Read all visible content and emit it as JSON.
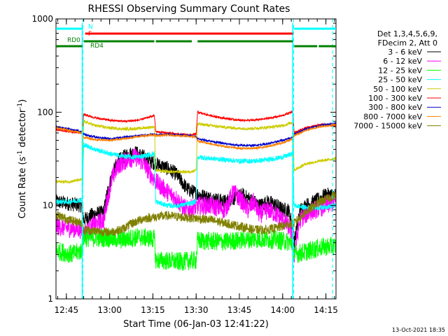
{
  "chart_data": {
    "type": "line",
    "title": "RHESSI Observing Summary Count Rates",
    "xlabel": "Start Time (06-Jan-03 12:41:22)",
    "ylabel_main": "Count Rate (s",
    "ylabel_sup1": "-1",
    "ylabel_mid": " detector",
    "ylabel_sup2": "-1",
    "ylabel_end": ")",
    "yscale": "log",
    "ylim": [
      1,
      1000
    ],
    "xlim_minutes": [
      41.4,
      138.5
    ],
    "x_ticks": [
      {
        "m": 45,
        "label": "12:45"
      },
      {
        "m": 60,
        "label": "13:00"
      },
      {
        "m": 75,
        "label": "13:15"
      },
      {
        "m": 90,
        "label": "13:30"
      },
      {
        "m": 105,
        "label": "13:45"
      },
      {
        "m": 120,
        "label": "14:00"
      },
      {
        "m": 135,
        "label": "14:15"
      }
    ],
    "y_ticks": [
      {
        "v": 1,
        "label": "1"
      },
      {
        "v": 10,
        "label": "10"
      },
      {
        "v": 100,
        "label": "100"
      },
      {
        "v": 1000,
        "label": "1000"
      }
    ],
    "legend": {
      "header1": "Det 1,3,4,5,6,9,",
      "header2": "FDecim 2, Att 0",
      "placement": "right"
    },
    "series": [
      {
        "name": "3 - 6 keV",
        "color": "#000000",
        "noise": 0.35,
        "points": [
          [
            41.4,
            11
          ],
          [
            50.5,
            10
          ],
          [
            51,
            7
          ],
          [
            54,
            8
          ],
          [
            58,
            8.5
          ],
          [
            59,
            13
          ],
          [
            61,
            22
          ],
          [
            63,
            30
          ],
          [
            66,
            35
          ],
          [
            69,
            37
          ],
          [
            72,
            33
          ],
          [
            74,
            30
          ],
          [
            76,
            28
          ],
          [
            80,
            25
          ],
          [
            83,
            22
          ],
          [
            85,
            18
          ],
          [
            87,
            15
          ],
          [
            89,
            14
          ],
          [
            91,
            13
          ],
          [
            95,
            12
          ],
          [
            100,
            11
          ],
          [
            103,
            12
          ],
          [
            106,
            13
          ],
          [
            108,
            12
          ],
          [
            110,
            11
          ],
          [
            112,
            10
          ],
          [
            115,
            11
          ],
          [
            118,
            10
          ],
          [
            120,
            9
          ],
          [
            122,
            9
          ],
          [
            123.5,
            6
          ],
          [
            124,
            4
          ],
          [
            126,
            9
          ],
          [
            128,
            10
          ],
          [
            131,
            11
          ],
          [
            135,
            13
          ],
          [
            138.5,
            13
          ]
        ]
      },
      {
        "name": "6 - 12 keV",
        "color": "#ff00ff",
        "noise": 0.45,
        "points": [
          [
            41.4,
            6
          ],
          [
            50.5,
            5.5
          ],
          [
            51,
            5
          ],
          [
            54,
            6
          ],
          [
            58,
            7
          ],
          [
            59,
            11
          ],
          [
            61,
            20
          ],
          [
            63,
            27
          ],
          [
            66,
            31
          ],
          [
            69,
            33
          ],
          [
            72,
            28
          ],
          [
            74,
            22
          ],
          [
            76,
            18
          ],
          [
            80,
            14
          ],
          [
            83,
            12
          ],
          [
            85,
            10
          ],
          [
            87,
            9
          ],
          [
            89,
            9.5
          ],
          [
            91,
            10
          ],
          [
            95,
            10
          ],
          [
            100,
            9
          ],
          [
            103,
            14
          ],
          [
            106,
            11
          ],
          [
            108,
            9
          ],
          [
            110,
            11
          ],
          [
            112,
            8
          ],
          [
            115,
            9
          ],
          [
            118,
            8
          ],
          [
            120,
            7
          ],
          [
            122,
            6
          ],
          [
            123.5,
            5
          ],
          [
            124,
            3
          ],
          [
            126,
            7
          ],
          [
            128,
            8
          ],
          [
            131,
            9
          ],
          [
            135,
            10
          ],
          [
            138.5,
            11
          ]
        ]
      },
      {
        "name": "12 - 25 keV",
        "color": "#00ff00",
        "noise": 0.45,
        "points": [
          [
            41.4,
            3.3
          ],
          [
            47,
            3.0
          ],
          [
            50.5,
            3.3
          ],
          [
            51,
            4.5
          ],
          [
            58,
            4.5
          ],
          [
            64,
            4.3
          ],
          [
            70,
            4.6
          ],
          [
            75.5,
            4.4
          ],
          [
            76,
            2.6
          ],
          [
            84,
            2.5
          ],
          [
            90,
            2.6
          ],
          [
            90.5,
            4.2
          ],
          [
            100,
            4.1
          ],
          [
            110,
            4.4
          ],
          [
            118,
            4.3
          ],
          [
            123.5,
            4.0
          ],
          [
            124,
            3.0
          ],
          [
            128,
            3.2
          ],
          [
            134,
            3.6
          ],
          [
            138.5,
            3.7
          ]
        ]
      },
      {
        "name": "25 - 50 keV",
        "color": "#00ffff",
        "noise": 0.12,
        "points": [
          [
            41.4,
            11
          ],
          [
            46,
            11
          ],
          [
            50.5,
            11.5
          ],
          [
            51,
            45
          ],
          [
            55,
            40
          ],
          [
            60,
            36
          ],
          [
            64,
            34
          ],
          [
            68,
            33
          ],
          [
            72,
            34
          ],
          [
            75.5,
            36
          ],
          [
            76,
            11
          ],
          [
            80,
            10
          ],
          [
            84,
            10
          ],
          [
            88,
            10.5
          ],
          [
            90,
            11
          ],
          [
            90.5,
            33
          ],
          [
            95,
            32
          ],
          [
            100,
            31
          ],
          [
            105,
            30
          ],
          [
            110,
            30
          ],
          [
            115,
            31
          ],
          [
            120,
            33
          ],
          [
            123.5,
            36
          ],
          [
            124,
            10
          ],
          [
            128,
            9.5
          ],
          [
            133,
            9.5
          ],
          [
            138.5,
            10
          ]
        ]
      },
      {
        "name": "50 - 100 keV",
        "color": "#cccc00",
        "noise": 0.07,
        "points": [
          [
            41.4,
            18
          ],
          [
            46,
            18
          ],
          [
            50.5,
            19
          ],
          [
            51,
            80
          ],
          [
            55,
            72
          ],
          [
            60,
            68
          ],
          [
            65,
            66
          ],
          [
            70,
            67
          ],
          [
            75.5,
            70
          ],
          [
            76,
            24
          ],
          [
            80,
            23
          ],
          [
            84,
            23
          ],
          [
            88,
            23
          ],
          [
            90,
            24
          ],
          [
            90.5,
            75
          ],
          [
            95,
            72
          ],
          [
            100,
            69
          ],
          [
            105,
            67
          ],
          [
            110,
            67
          ],
          [
            115,
            69
          ],
          [
            120,
            72
          ],
          [
            123.5,
            78
          ],
          [
            124,
            24
          ],
          [
            128,
            28
          ],
          [
            133,
            30
          ],
          [
            138.5,
            32
          ]
        ]
      },
      {
        "name": "100 - 300 keV",
        "color": "#ff0000",
        "noise": 0.05,
        "points": [
          [
            41.4,
            65
          ],
          [
            46,
            62
          ],
          [
            50.5,
            60
          ],
          [
            51,
            95
          ],
          [
            55,
            87
          ],
          [
            60,
            82
          ],
          [
            65,
            80
          ],
          [
            70,
            82
          ],
          [
            75.5,
            92
          ],
          [
            76,
            62
          ],
          [
            80,
            60
          ],
          [
            84,
            58
          ],
          [
            88,
            57
          ],
          [
            90,
            58
          ],
          [
            90.5,
            100
          ],
          [
            95,
            92
          ],
          [
            100,
            86
          ],
          [
            105,
            82
          ],
          [
            110,
            82
          ],
          [
            115,
            86
          ],
          [
            120,
            92
          ],
          [
            123.5,
            102
          ],
          [
            124,
            60
          ],
          [
            128,
            68
          ],
          [
            133,
            74
          ],
          [
            138.5,
            72
          ]
        ]
      },
      {
        "name": "300 - 800 keV",
        "color": "#0000cc",
        "noise": 0.05,
        "points": [
          [
            41.4,
            70
          ],
          [
            46,
            66
          ],
          [
            50.5,
            62
          ],
          [
            51,
            58
          ],
          [
            55,
            54
          ],
          [
            60,
            52
          ],
          [
            65,
            54
          ],
          [
            70,
            56
          ],
          [
            75.5,
            58
          ],
          [
            76,
            57
          ],
          [
            80,
            58
          ],
          [
            84,
            57
          ],
          [
            88,
            56
          ],
          [
            90,
            55
          ],
          [
            90.5,
            52
          ],
          [
            95,
            49
          ],
          [
            100,
            46
          ],
          [
            105,
            44
          ],
          [
            110,
            44
          ],
          [
            115,
            46
          ],
          [
            120,
            50
          ],
          [
            123.5,
            54
          ],
          [
            124,
            58
          ],
          [
            128,
            66
          ],
          [
            133,
            72
          ],
          [
            138.5,
            76
          ]
        ]
      },
      {
        "name": "800 - 7000 keV",
        "color": "#ff8000",
        "noise": 0.05,
        "points": [
          [
            41.4,
            68
          ],
          [
            46,
            64
          ],
          [
            50.5,
            60
          ],
          [
            51,
            54
          ],
          [
            55,
            51
          ],
          [
            60,
            50
          ],
          [
            65,
            52
          ],
          [
            70,
            55
          ],
          [
            75.5,
            57
          ],
          [
            76,
            56
          ],
          [
            80,
            57
          ],
          [
            84,
            56
          ],
          [
            88,
            55
          ],
          [
            90,
            54
          ],
          [
            90.5,
            49
          ],
          [
            95,
            46
          ],
          [
            100,
            43
          ],
          [
            105,
            41
          ],
          [
            110,
            41
          ],
          [
            115,
            43
          ],
          [
            120,
            47
          ],
          [
            123.5,
            52
          ],
          [
            124,
            56
          ],
          [
            128,
            64
          ],
          [
            133,
            70
          ],
          [
            138.5,
            74
          ]
        ]
      },
      {
        "name": "7000 - 15000 keV",
        "color": "#808000",
        "noise": 0.22,
        "points": [
          [
            41.4,
            8
          ],
          [
            46,
            7
          ],
          [
            50.5,
            6.5
          ],
          [
            51,
            5.5
          ],
          [
            56,
            5.3
          ],
          [
            60,
            5.2
          ],
          [
            64,
            5.5
          ],
          [
            68,
            6.5
          ],
          [
            72,
            7.3
          ],
          [
            75.5,
            7.5
          ],
          [
            80,
            7.8
          ],
          [
            85,
            7.5
          ],
          [
            90,
            7.3
          ],
          [
            95,
            7
          ],
          [
            100,
            6.5
          ],
          [
            105,
            6
          ],
          [
            110,
            5.5
          ],
          [
            115,
            5.5
          ],
          [
            120,
            6
          ],
          [
            123.5,
            6.5
          ],
          [
            124,
            6.5
          ],
          [
            128,
            8.5
          ],
          [
            133,
            11
          ],
          [
            138.5,
            13
          ]
        ]
      }
    ],
    "annotations": {
      "labels": [
        {
          "text": "N",
          "color": "#00ffff"
        },
        {
          "text": "F",
          "color": "#ff0000"
        },
        {
          "text": "RD0",
          "color": "#008000"
        },
        {
          "text": "RD4",
          "color": "#008000"
        }
      ],
      "bars": [
        {
          "flag": "N",
          "color": "#00ffff",
          "ranges": [
            [
              41.4,
              50.5
            ],
            [
              124,
              138.5
            ]
          ]
        },
        {
          "flag": "F",
          "color": "#ff0000",
          "ranges": [
            [
              51.5,
              123.5
            ]
          ]
        },
        {
          "flag": "RD",
          "color": "#008000",
          "ranges": [
            [
              41.4,
              50.5
            ],
            [
              51,
              75.5
            ],
            [
              76,
              88.5
            ],
            [
              90.5,
              123.5
            ],
            [
              124,
              132
            ],
            [
              132.5,
              138.5
            ]
          ]
        }
      ],
      "dashed_lines_minutes": [
        50.7,
        123.8,
        137.3
      ]
    },
    "timestamp": "13-Oct-2021 18:35"
  }
}
